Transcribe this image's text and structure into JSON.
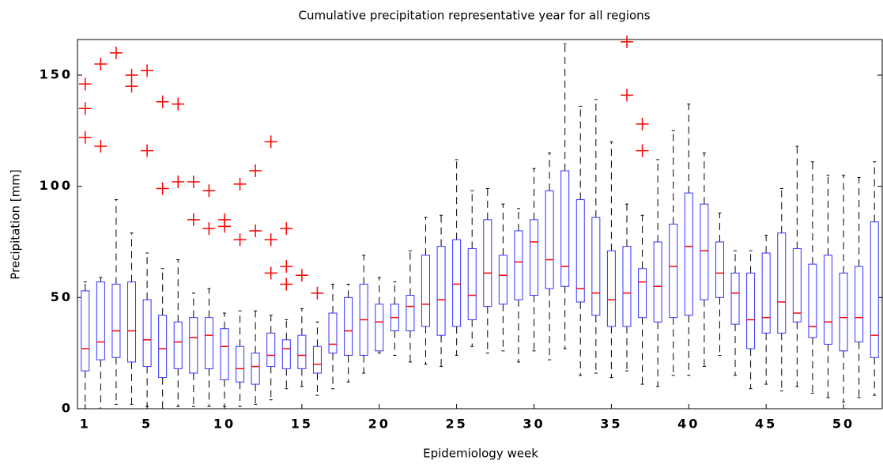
{
  "chart_data": {
    "type": "box",
    "title": "Cumulative precipitation representative year for all regions",
    "x_label": "Epidemiology week",
    "y_label": "Precipitation [mm]",
    "x": [
      1,
      2,
      3,
      4,
      5,
      6,
      7,
      8,
      9,
      10,
      11,
      12,
      13,
      14,
      15,
      16,
      17,
      18,
      19,
      20,
      21,
      22,
      23,
      24,
      25,
      26,
      27,
      28,
      29,
      30,
      31,
      32,
      33,
      34,
      35,
      36,
      37,
      38,
      39,
      40,
      41,
      42,
      43,
      44,
      45,
      46,
      47,
      48,
      49,
      50,
      51,
      52
    ],
    "whisker_low": [
      0,
      0,
      2,
      2,
      1,
      0,
      1,
      1,
      1,
      1,
      1,
      2,
      4,
      9,
      10,
      6,
      9,
      12,
      16,
      25,
      24,
      21,
      20,
      19,
      24,
      28,
      25,
      26,
      21,
      26,
      22,
      27,
      15,
      16,
      14,
      17,
      11,
      10,
      15,
      15,
      19,
      24,
      15,
      9,
      11,
      8,
      10,
      7,
      5,
      3,
      5,
      6
    ],
    "q1": [
      17,
      22,
      23,
      21,
      19,
      14,
      18,
      16,
      18,
      13,
      12,
      11,
      19,
      18,
      18,
      16,
      25,
      24,
      24,
      26,
      35,
      35,
      37,
      33,
      37,
      40,
      46,
      47,
      49,
      51,
      54,
      55,
      48,
      42,
      37,
      37,
      41,
      39,
      41,
      42,
      49,
      50,
      38,
      27,
      34,
      34,
      39,
      32,
      29,
      26,
      30,
      23
    ],
    "median": [
      27,
      30,
      35,
      35,
      31,
      27,
      30,
      32,
      33,
      28,
      18,
      19,
      24,
      27,
      24,
      20,
      29,
      35,
      40,
      39,
      41,
      46,
      47,
      49,
      56,
      51,
      61,
      60,
      66,
      75,
      67,
      64,
      54,
      52,
      49,
      52,
      57,
      55,
      64,
      73,
      71,
      61,
      52,
      40,
      41,
      48,
      43,
      37,
      39,
      41,
      41,
      33
    ],
    "q3": [
      53,
      57,
      56,
      57,
      49,
      42,
      39,
      41,
      41,
      36,
      28,
      25,
      34,
      31,
      33,
      28,
      43,
      50,
      56,
      47,
      47,
      51,
      69,
      73,
      76,
      72,
      85,
      69,
      80,
      85,
      98,
      107,
      94,
      86,
      71,
      73,
      63,
      75,
      83,
      97,
      92,
      75,
      61,
      61,
      70,
      79,
      72,
      65,
      69,
      61,
      64,
      84
    ],
    "whisker_high": [
      57,
      59,
      94,
      79,
      70,
      63,
      67,
      52,
      54,
      43,
      44,
      44,
      42,
      40,
      45,
      39,
      56,
      56,
      69,
      59,
      57,
      71,
      86,
      87,
      112,
      98,
      99,
      92,
      90,
      108,
      115,
      164,
      136,
      139,
      120,
      92,
      87,
      112,
      125,
      137,
      115,
      88,
      71,
      71,
      78,
      99,
      118,
      111,
      105,
      105,
      104,
      111
    ],
    "outliers": [
      [
        146,
        135,
        122
      ],
      [
        155,
        118
      ],
      [
        160
      ],
      [
        150,
        145
      ],
      [
        152,
        116
      ],
      [
        138,
        99
      ],
      [
        137,
        102
      ],
      [
        102,
        85
      ],
      [
        98,
        81
      ],
      [
        85,
        82
      ],
      [
        101,
        76
      ],
      [
        107,
        80
      ],
      [
        120,
        76,
        61
      ],
      [
        81,
        64,
        56
      ],
      [
        60
      ],
      [
        52
      ],
      [],
      [],
      [],
      [],
      [],
      [],
      [],
      [],
      [],
      [],
      [],
      [],
      [],
      [],
      [],
      [],
      [],
      [],
      [],
      [
        165,
        141
      ],
      [
        128,
        116
      ],
      [],
      [],
      [],
      [],
      [],
      [],
      [],
      [],
      [],
      [],
      [],
      [],
      [],
      [],
      []
    ],
    "box_color": "#3333ff",
    "median_color": "#ff0000",
    "whisker_color": "#000000",
    "outlier_color": "#ff0000",
    "xlim": [
      0.5,
      52.5
    ],
    "xticks": [
      1,
      5,
      10,
      15,
      20,
      25,
      30,
      35,
      40,
      45,
      50
    ],
    "ylim": [
      0,
      166
    ],
    "yticks": [
      0,
      50,
      100,
      150
    ],
    "grid": false
  }
}
